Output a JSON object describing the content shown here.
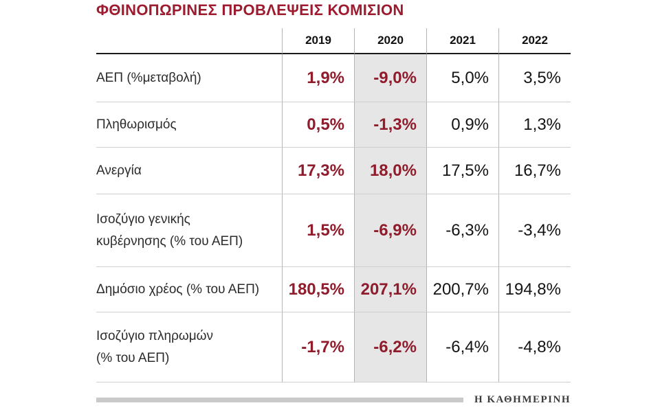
{
  "title": "ΦΘΙΝΟΠΩΡΙΝΕΣ ΠΡΟΒΛΕΨΕΙΣ ΚΟΜΙΣΙΟΝ",
  "source_label": "Η ΚΑΘΗΜΕΡΙΝΗ",
  "colors": {
    "accent_red": "#9d1b2e",
    "value_red": "#8f1b2b",
    "highlight_gray": "#e6e6e6",
    "text_black": "#141414"
  },
  "chart_data": {
    "type": "table",
    "title": "ΦΘΙΝΟΠΩΡΙΝΕΣ ΠΡΟΒΛΕΨΕΙΣ ΚΟΜΙΣΙΟΝ",
    "columns": [
      "2019",
      "2020",
      "2021",
      "2022"
    ],
    "highlighted_column": "2020",
    "rows": [
      {
        "label": "ΑΕΠ (%μεταβολή)",
        "values": [
          "1,9%",
          "-9,0%",
          "5,0%",
          "3,5%"
        ]
      },
      {
        "label": "Πληθωρισμός",
        "values": [
          "0,5%",
          "-1,3%",
          "0,9%",
          "1,3%"
        ]
      },
      {
        "label": "Ανεργία",
        "values": [
          "17,3%",
          "18,0%",
          "17,5%",
          "16,7%"
        ]
      },
      {
        "label": "Ισοζύγιο γενικής\nκυβέρνησης (% του ΑΕΠ)",
        "values": [
          "1,5%",
          "-6,9%",
          "-6,3%",
          "-3,4%"
        ]
      },
      {
        "label": "Δημόσιο χρέος (% του ΑΕΠ)",
        "values": [
          "180,5%",
          "207,1%",
          "200,7%",
          "194,8%"
        ]
      },
      {
        "label": "Ισοζύγιο πληρωμών\n(% του ΑΕΠ)",
        "values": [
          "-1,7%",
          "-6,2%",
          "-6,4%",
          "-4,8%"
        ]
      }
    ]
  }
}
